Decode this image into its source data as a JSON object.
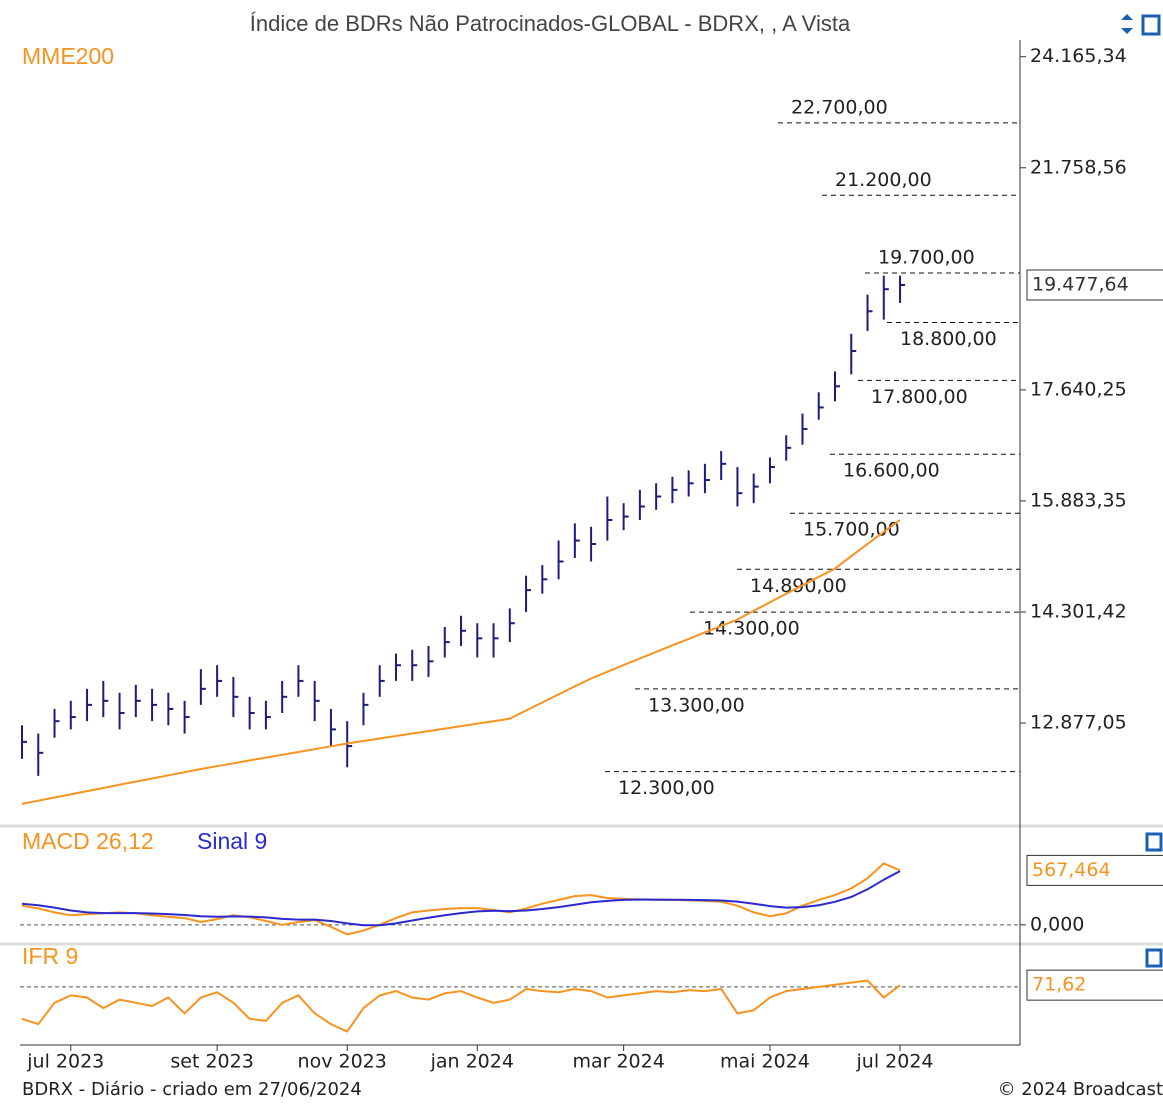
{
  "chart_data": [
    {
      "type": "ohlc",
      "title": "Índice de BDRs Não Patrocinados-GLOBAL - BDRX, , A Vista",
      "log_scale": true,
      "color": "#1c1c7c",
      "categories": [
        null,
        null,
        null,
        "jul 2023",
        null,
        null,
        null,
        null,
        null,
        null,
        null,
        null,
        "set 2023",
        null,
        null,
        null,
        null,
        null,
        null,
        null,
        "nov 2023",
        null,
        null,
        null,
        null,
        null,
        null,
        null,
        "jan 2024",
        null,
        null,
        null,
        null,
        null,
        null,
        null,
        null,
        "mar 2024",
        null,
        null,
        null,
        null,
        null,
        null,
        null,
        null,
        "mai 2024",
        null,
        null,
        null,
        null,
        null,
        null,
        null,
        "jul 2024"
      ],
      "high": [
        12850,
        12750,
        13050,
        13150,
        13300,
        13400,
        13250,
        13350,
        13300,
        13250,
        13150,
        13550,
        13600,
        13450,
        13200,
        13150,
        13400,
        13600,
        13400,
        13050,
        12900,
        13250,
        13600,
        13750,
        13800,
        13850,
        14100,
        14250,
        14150,
        14150,
        14350,
        14800,
        14950,
        15300,
        15550,
        15500,
        15950,
        15850,
        16050,
        16150,
        16250,
        16350,
        16450,
        16650,
        16400,
        16300,
        16550,
        16900,
        17250,
        17600,
        17950,
        18600,
        19300,
        19650,
        19650
      ],
      "low": [
        12450,
        12250,
        12700,
        12800,
        12900,
        12950,
        12800,
        12950,
        12900,
        12850,
        12750,
        13100,
        13200,
        12950,
        12800,
        12800,
        13000,
        13200,
        12900,
        12600,
        12350,
        12850,
        13200,
        13400,
        13400,
        13450,
        13700,
        13850,
        13700,
        13700,
        13900,
        14300,
        14550,
        14750,
        15050,
        15000,
        15300,
        15450,
        15600,
        15750,
        15850,
        15950,
        16000,
        16200,
        15800,
        15850,
        16150,
        16500,
        16750,
        17150,
        17450,
        17900,
        18650,
        18850,
        19150
      ],
      "close": [
        12650,
        12520,
        12900,
        12950,
        13100,
        13150,
        13000,
        13150,
        13100,
        13050,
        12950,
        13300,
        13400,
        13200,
        13000,
        12950,
        13200,
        13400,
        13150,
        12800,
        12600,
        13100,
        13400,
        13600,
        13600,
        13650,
        13900,
        14050,
        13950,
        13950,
        14150,
        14600,
        14750,
        15000,
        15300,
        15250,
        15600,
        15650,
        15800,
        15950,
        16050,
        16150,
        16200,
        16450,
        16000,
        16100,
        16400,
        16700,
        17000,
        17350,
        17700,
        18300,
        19000,
        19400,
        19477.64
      ],
      "series": [
        {
          "name": "MME200",
          "color": "#f7931e",
          "values": [
            11930,
            11966,
            12002,
            12038,
            12075,
            12111,
            12148,
            12184,
            12220,
            12257,
            12293,
            12330,
            12363,
            12397,
            12430,
            12463,
            12497,
            12530,
            12563,
            12597,
            12630,
            12660,
            12690,
            12720,
            12750,
            12780,
            12810,
            12840,
            12870,
            12900,
            12930,
            13030,
            13130,
            13230,
            13330,
            13430,
            13516,
            13601,
            13687,
            13772,
            13858,
            13943,
            14029,
            14114,
            14200,
            14317,
            14433,
            14550,
            14667,
            14783,
            14900,
            15075,
            15250,
            15425,
            15600
          ]
        }
      ],
      "ylim": [
        11750,
        24550
      ],
      "yticks": [
        {
          "value": 24165.34,
          "label": "24.165,34"
        },
        {
          "value": 21758.56,
          "label": "21.758,56"
        },
        {
          "value": 17640.25,
          "label": "17.640,25"
        },
        {
          "value": 15883.35,
          "label": "15.883,35"
        },
        {
          "value": 14301.42,
          "label": "14.301,42"
        },
        {
          "value": 12877.05,
          "label": "12.877,05"
        }
      ],
      "last_label": {
        "value": 19477.64,
        "label": "19.477,64"
      },
      "levels": [
        {
          "value": 22700,
          "label": "22.700,00"
        },
        {
          "value": 21200,
          "label": "21.200,00"
        },
        {
          "value": 19700,
          "label": "19.700,00"
        },
        {
          "value": 18800,
          "label": "18.800,00"
        },
        {
          "value": 17800,
          "label": "17.800,00"
        },
        {
          "value": 16600,
          "label": "16.600,00"
        },
        {
          "value": 15700,
          "label": "15.700,00"
        },
        {
          "value": 14890,
          "label": "14.890,00"
        },
        {
          "value": 14300,
          "label": "14.300,00"
        },
        {
          "value": 13300,
          "label": "13.300,00"
        },
        {
          "value": 12300,
          "label": "12.300,00"
        }
      ]
    },
    {
      "type": "line",
      "ylim": [
        -210,
        780
      ],
      "series": [
        {
          "name": "MACD 26,12",
          "color": "#f7931e",
          "values": [
            200,
            170,
            130,
            100,
            110,
            120,
            130,
            120,
            100,
            85,
            70,
            30,
            60,
            100,
            80,
            40,
            0,
            30,
            50,
            -20,
            -100,
            -60,
            0,
            70,
            130,
            150,
            165,
            175,
            175,
            155,
            130,
            170,
            220,
            260,
            300,
            310,
            280,
            270,
            265,
            260,
            260,
            255,
            250,
            240,
            200,
            130,
            90,
            120,
            200,
            260,
            310,
            380,
            485,
            640,
            567.464
          ]
        },
        {
          "name": "Sinal 9",
          "color": "#2a2ad0",
          "values": [
            220,
            205,
            180,
            150,
            130,
            122,
            122,
            122,
            118,
            112,
            103,
            90,
            85,
            88,
            86,
            78,
            62,
            55,
            55,
            40,
            15,
            -5,
            -5,
            15,
            45,
            75,
            100,
            122,
            140,
            146,
            143,
            150,
            165,
            185,
            210,
            235,
            250,
            260,
            264,
            263,
            262,
            260,
            258,
            254,
            242,
            220,
            195,
            180,
            185,
            205,
            240,
            290,
            370,
            470,
            560
          ]
        }
      ],
      "yticks": [
        {
          "value": 0,
          "label": "0,000"
        }
      ],
      "last_label": {
        "value": 567.464,
        "label": "567,464"
      }
    },
    {
      "type": "line",
      "ylim": [
        20,
        100
      ],
      "reference": 70,
      "series": [
        {
          "name": "IFR 9",
          "color": "#f7931e",
          "values": [
            40,
            35,
            55,
            62,
            60,
            50,
            58,
            55,
            52,
            60,
            45,
            60,
            65,
            55,
            40,
            38,
            55,
            62,
            45,
            35,
            28,
            50,
            62,
            66,
            60,
            58,
            64,
            66,
            60,
            55,
            58,
            68,
            66,
            65,
            68,
            66,
            60,
            62,
            64,
            66,
            65,
            67,
            66,
            68,
            45,
            48,
            60,
            66,
            68,
            70,
            72,
            74,
            76,
            60,
            71.62
          ]
        }
      ],
      "last_label": {
        "value": 71.62,
        "label": "71,62"
      }
    }
  ],
  "footer": {
    "left": "BDRX - Diário - criado em 27/06/2024",
    "right": "© 2024 Broadcast"
  }
}
